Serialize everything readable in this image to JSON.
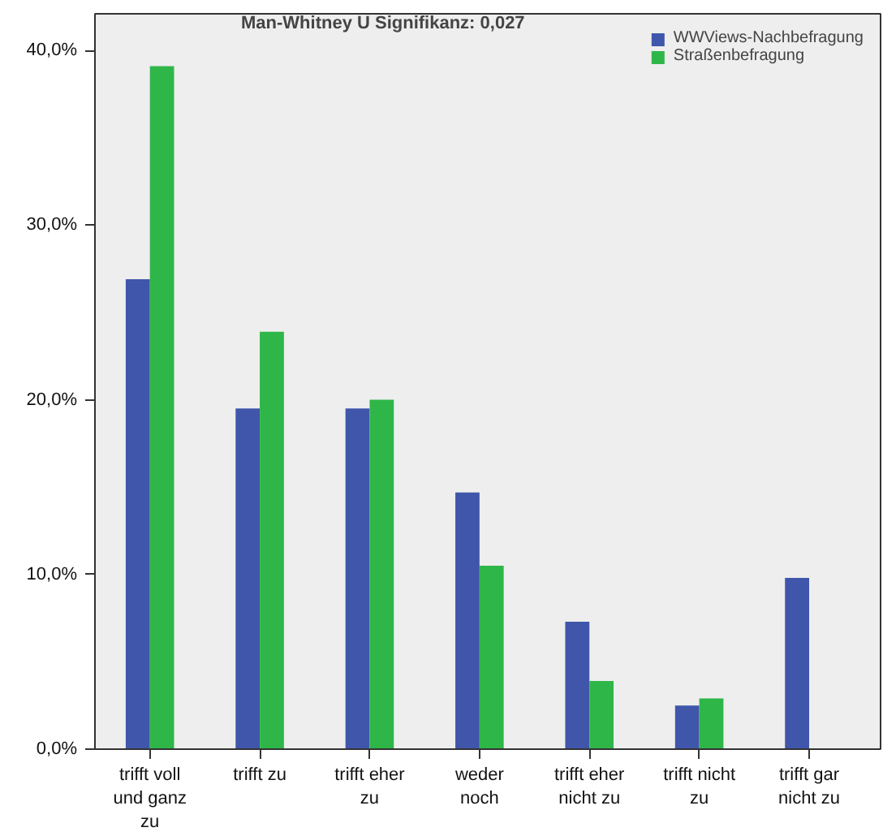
{
  "chart_data": {
    "type": "bar",
    "categories": [
      "trifft voll\nund ganz\nzu",
      "trifft zu",
      "trifft eher\nzu",
      "weder\nnoch",
      "trifft eher\nnicht zu",
      "trifft nicht\nzu",
      "trifft gar\nnicht zu"
    ],
    "series": [
      {
        "name": "WWViews-Nachbefragung",
        "color": "#3f56aa",
        "values": [
          26.9,
          19.5,
          19.5,
          14.7,
          7.3,
          2.5,
          9.8
        ]
      },
      {
        "name": "Straßenbefragung",
        "color": "#2fb648",
        "values": [
          39.1,
          23.9,
          20.0,
          10.5,
          3.9,
          2.9,
          null
        ]
      }
    ],
    "ylim": [
      0,
      42.1
    ],
    "yticks": [
      {
        "value": 0,
        "label": "0,0%"
      },
      {
        "value": 10,
        "label": "10,0%"
      },
      {
        "value": 20,
        "label": "20,0%"
      },
      {
        "value": 30,
        "label": "30,0%"
      },
      {
        "value": 40,
        "label": "40,0%"
      }
    ],
    "annotations": [
      "Man-Whitney U Signifikanz: 0,027"
    ],
    "legend": "top right",
    "grid": false
  }
}
